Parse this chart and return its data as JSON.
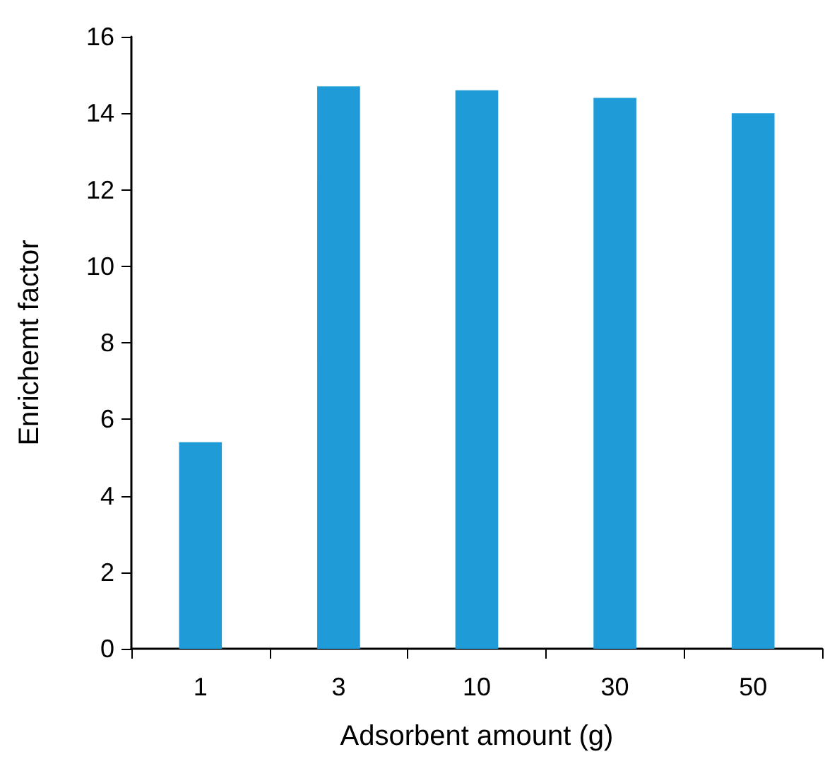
{
  "chart_data": {
    "type": "bar",
    "xlabel": "Adsorbent amount (g)",
    "ylabel": "Enrichemt factor",
    "categories": [
      "1",
      "3",
      "10",
      "30",
      "50"
    ],
    "values": [
      5.4,
      14.7,
      14.6,
      14.4,
      14.0
    ],
    "color": "#1f9bd7",
    "ylim": [
      0,
      16
    ],
    "yticks": [
      0,
      2,
      4,
      6,
      8,
      10,
      12,
      14,
      16
    ],
    "grid": false
  }
}
